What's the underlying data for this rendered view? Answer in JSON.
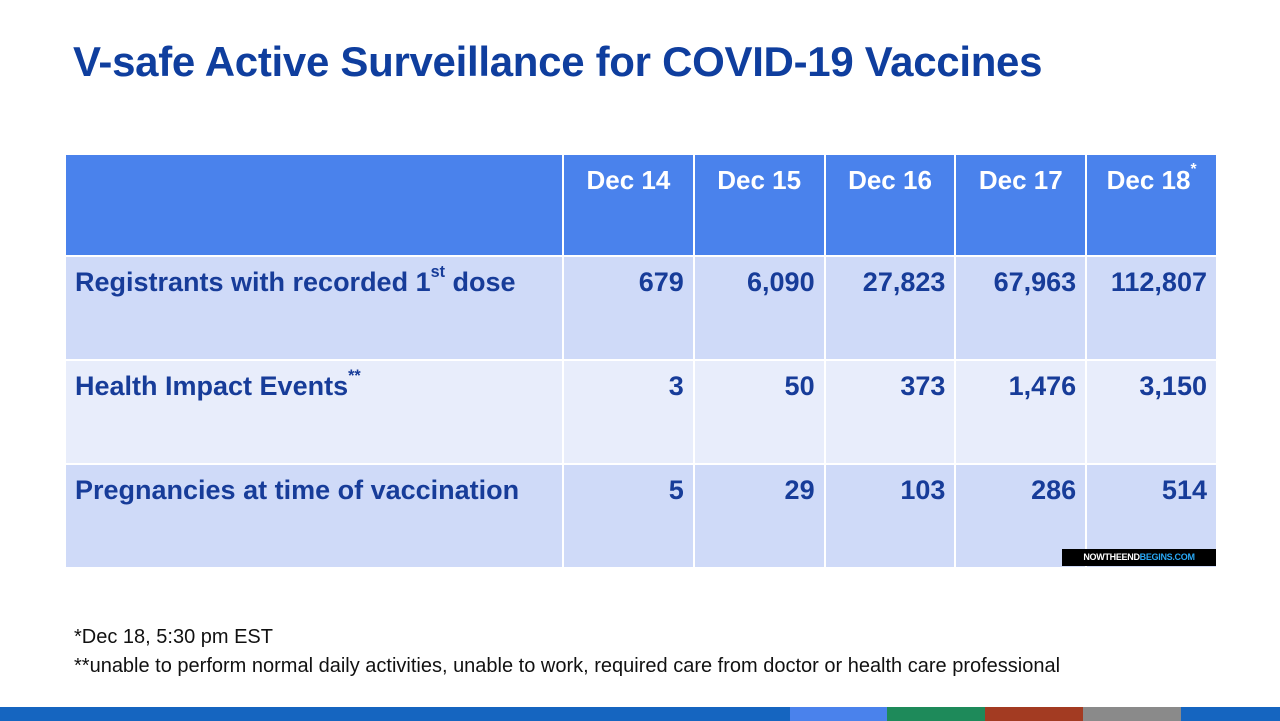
{
  "title": "V-safe Active Surveillance for COVID-19 Vaccines",
  "table": {
    "columns": [
      {
        "label": "Dec 14",
        "sup": ""
      },
      {
        "label": "Dec 15",
        "sup": ""
      },
      {
        "label": "Dec 16",
        "sup": ""
      },
      {
        "label": "Dec 17",
        "sup": ""
      },
      {
        "label": "Dec 18",
        "sup": "*"
      }
    ],
    "rows": [
      {
        "label": "Registrants with recorded 1",
        "sup": "st",
        "suffix": " dose",
        "values": [
          "679",
          "6,090",
          "27,823",
          "67,963",
          "112,807"
        ]
      },
      {
        "label": "Health Impact Events",
        "sup": "**",
        "suffix": "",
        "values": [
          "3",
          "50",
          "373",
          "1,476",
          "3,150"
        ]
      },
      {
        "label": "Pregnancies at time of vaccination",
        "sup": "",
        "suffix": "",
        "values": [
          "5",
          "29",
          "103",
          "286",
          "514"
        ]
      }
    ]
  },
  "watermark": {
    "part1": "NOWTHEEND",
    "part2": "BEGINS.COM"
  },
  "footnotes": {
    "note1": "*Dec 18, 5:30 pm EST",
    "note2": "**unable to perform normal daily activities, unable to work, required care from doctor or health care professional"
  },
  "colors": {
    "title": "#0f3e9e",
    "header_bg": "#4a82ec",
    "row_dark": "#cfdaf8",
    "row_light": "#e8edfb",
    "text": "#173c99"
  }
}
